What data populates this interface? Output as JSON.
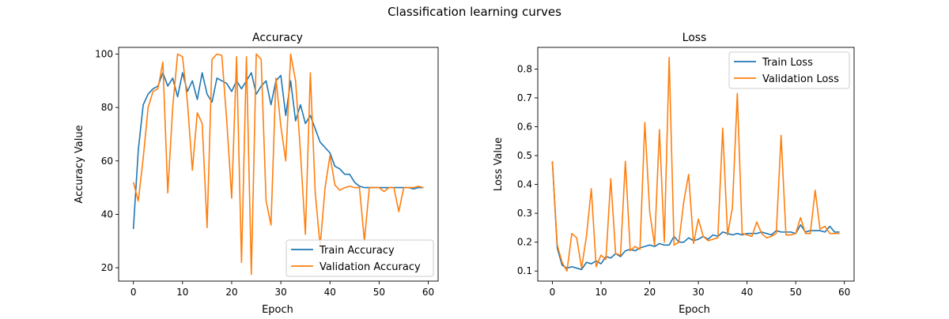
{
  "figure": {
    "suptitle": "Classification learning curves"
  },
  "colors": {
    "train": "#1f77b4",
    "validation": "#ff7f0e"
  },
  "chart_data": [
    {
      "type": "line",
      "title": "Accuracy",
      "xlabel": "Epoch",
      "ylabel": "Accuracy Value",
      "xlim": [
        -3,
        62
      ],
      "ylim": [
        15,
        102.5
      ],
      "xticks": [
        0,
        10,
        20,
        30,
        40,
        50,
        60
      ],
      "yticks": [
        20,
        40,
        60,
        80,
        100
      ],
      "legend": "lower right",
      "grid": false,
      "x": [
        0,
        1,
        2,
        3,
        4,
        5,
        6,
        7,
        8,
        9,
        10,
        11,
        12,
        13,
        14,
        15,
        16,
        17,
        18,
        19,
        20,
        21,
        22,
        23,
        24,
        25,
        26,
        27,
        28,
        29,
        30,
        31,
        32,
        33,
        34,
        35,
        36,
        37,
        38,
        39,
        40,
        41,
        42,
        43,
        44,
        45,
        46,
        47,
        48,
        49,
        50,
        51,
        52,
        53,
        54,
        55,
        56,
        57,
        58,
        59
      ],
      "series": [
        {
          "name": "Train Accuracy",
          "color": "#1f77b4",
          "values": [
            34.5,
            64,
            81,
            85,
            87,
            88,
            93,
            88,
            91,
            84,
            93,
            86,
            90,
            83,
            93,
            85,
            82,
            91,
            90,
            89,
            86,
            90,
            87,
            90,
            93,
            85,
            88,
            90,
            81,
            90,
            92,
            77,
            90,
            75,
            81,
            74,
            77,
            72,
            67,
            65,
            63,
            58,
            57,
            55,
            55,
            52,
            50.5,
            50,
            50,
            50,
            50,
            50,
            50,
            50,
            50,
            50,
            50,
            49.5,
            50,
            50
          ]
        },
        {
          "name": "Validation Accuracy",
          "color": "#ff7f0e",
          "values": [
            52,
            45,
            61,
            80,
            86,
            87,
            97,
            48,
            80,
            100,
            99,
            82,
            56.5,
            78,
            74,
            35,
            98,
            100,
            99.5,
            75,
            46,
            99,
            22,
            99,
            17.5,
            100,
            98,
            45,
            36,
            91,
            73,
            60,
            100,
            90,
            63,
            32.5,
            93,
            48,
            28,
            50,
            62,
            51,
            49,
            50,
            50.5,
            50,
            50,
            30,
            50,
            50,
            50,
            48.5,
            50,
            50,
            41,
            50,
            50,
            50,
            50.5,
            50
          ]
        }
      ]
    },
    {
      "type": "line",
      "title": "Loss",
      "xlabel": "Epoch",
      "ylabel": "Loss Value",
      "xlim": [
        -3,
        62
      ],
      "ylim": [
        0.065,
        0.875
      ],
      "xticks": [
        0,
        10,
        20,
        30,
        40,
        50,
        60
      ],
      "yticks": [
        0.1,
        0.2,
        0.3,
        0.4,
        0.5,
        0.6,
        0.7,
        0.8
      ],
      "legend": "upper right",
      "grid": false,
      "x": [
        0,
        1,
        2,
        3,
        4,
        5,
        6,
        7,
        8,
        9,
        10,
        11,
        12,
        13,
        14,
        15,
        16,
        17,
        18,
        19,
        20,
        21,
        22,
        23,
        24,
        25,
        26,
        27,
        28,
        29,
        30,
        31,
        32,
        33,
        34,
        35,
        36,
        37,
        38,
        39,
        40,
        41,
        42,
        43,
        44,
        45,
        46,
        47,
        48,
        49,
        50,
        51,
        52,
        53,
        54,
        55,
        56,
        57,
        58,
        59
      ],
      "series": [
        {
          "name": "Train Loss",
          "color": "#1f77b4",
          "values": [
            0.48,
            0.18,
            0.12,
            0.11,
            0.115,
            0.11,
            0.105,
            0.13,
            0.125,
            0.135,
            0.125,
            0.15,
            0.145,
            0.16,
            0.15,
            0.17,
            0.175,
            0.17,
            0.18,
            0.185,
            0.19,
            0.185,
            0.195,
            0.19,
            0.19,
            0.22,
            0.2,
            0.2,
            0.215,
            0.205,
            0.21,
            0.22,
            0.21,
            0.225,
            0.22,
            0.235,
            0.23,
            0.225,
            0.23,
            0.225,
            0.23,
            0.23,
            0.23,
            0.235,
            0.23,
            0.225,
            0.24,
            0.235,
            0.235,
            0.235,
            0.23,
            0.26,
            0.235,
            0.24,
            0.24,
            0.24,
            0.235,
            0.255,
            0.235,
            0.235
          ]
        },
        {
          "name": "Validation Loss",
          "color": "#ff7f0e",
          "values": [
            0.48,
            0.19,
            0.13,
            0.1,
            0.23,
            0.215,
            0.11,
            0.22,
            0.385,
            0.115,
            0.155,
            0.14,
            0.42,
            0.16,
            0.155,
            0.48,
            0.17,
            0.185,
            0.175,
            0.615,
            0.305,
            0.19,
            0.59,
            0.2,
            0.84,
            0.19,
            0.2,
            0.34,
            0.435,
            0.195,
            0.28,
            0.22,
            0.205,
            0.21,
            0.215,
            0.595,
            0.225,
            0.32,
            0.715,
            0.23,
            0.225,
            0.22,
            0.27,
            0.23,
            0.215,
            0.22,
            0.23,
            0.57,
            0.225,
            0.225,
            0.23,
            0.285,
            0.23,
            0.23,
            0.38,
            0.245,
            0.255,
            0.23,
            0.23,
            0.23
          ]
        }
      ]
    }
  ]
}
